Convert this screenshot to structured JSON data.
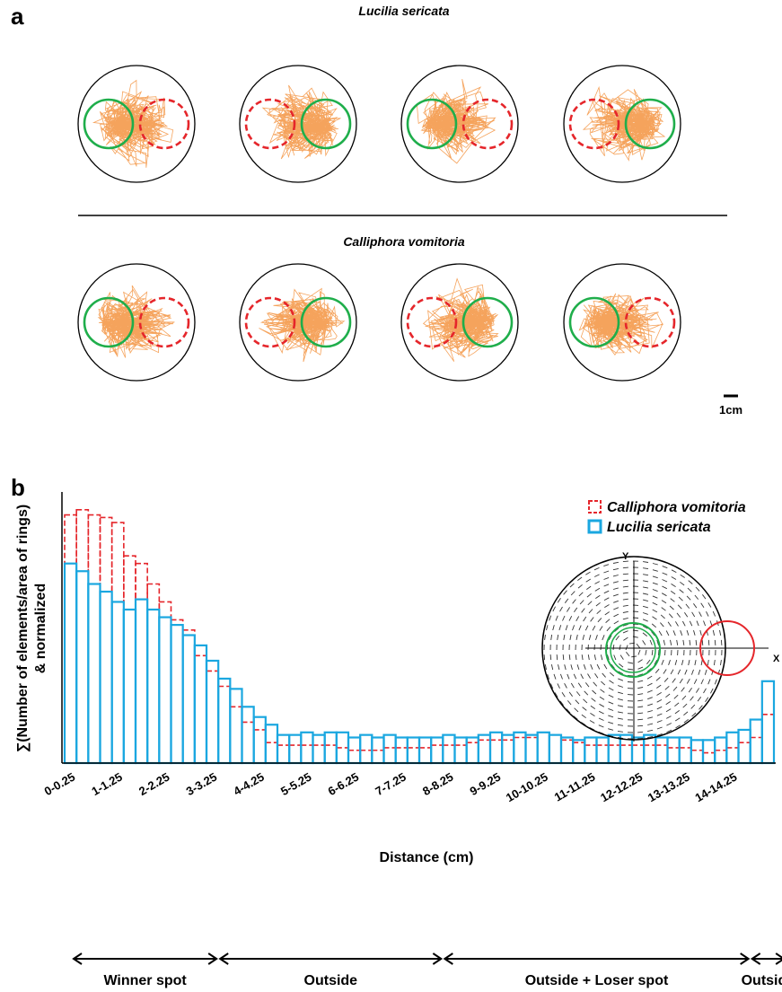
{
  "panel_a": {
    "letter": "a",
    "species": [
      {
        "title": "Lucilia sericata",
        "arenas": [
          {
            "winner_side": "left"
          },
          {
            "winner_side": "right"
          },
          {
            "winner_side": "left"
          },
          {
            "winner_side": "right"
          }
        ]
      },
      {
        "title": "Calliphora vomitoria",
        "arenas": [
          {
            "winner_side": "left"
          },
          {
            "winner_side": "right"
          },
          {
            "winner_side": "right"
          },
          {
            "winner_side": "left"
          }
        ]
      }
    ],
    "scale_bar_label": "1cm",
    "colors": {
      "trajectory": "#f5a35c",
      "winner_circle": "#1fae4b",
      "loser_circle": "#e5262b",
      "arena": "#000000"
    }
  },
  "panel_b": {
    "letter": "b",
    "inset": {
      "x_label": "X",
      "y_label": "Y"
    },
    "regions": [
      "Winner spot",
      "Outside",
      "Outside + Loser spot",
      "Outside"
    ],
    "region_bins": [
      [
        0,
        13
      ],
      [
        13,
        32
      ],
      [
        32,
        58
      ],
      [
        58,
        61
      ]
    ]
  },
  "chart_data": {
    "type": "bar",
    "xlabel": "Distance (cm)",
    "ylabel_lines": [
      "∑(Number of elements/area of rings)",
      "& normalized"
    ],
    "tick_labels": [
      "0-0.25",
      "1-1.25",
      "2-2.25",
      "3-3.25",
      "4-4.25",
      "5-5.25",
      "6-6.25",
      "7-7.25",
      "8-8.25",
      "9-9.25",
      "10-10.25",
      "11-11.25",
      "12-12.25",
      "13-13.25",
      "14-14.25"
    ],
    "bin_width": 0.25,
    "x_start": 0,
    "ylim": [
      0,
      1
    ],
    "series": [
      {
        "name": "Lucilia sericata",
        "color": "#1aa7e0",
        "style": "solid",
        "values": [
          0.78,
          0.75,
          0.7,
          0.67,
          0.63,
          0.6,
          0.64,
          0.6,
          0.57,
          0.54,
          0.5,
          0.46,
          0.4,
          0.33,
          0.29,
          0.22,
          0.18,
          0.15,
          0.11,
          0.11,
          0.12,
          0.11,
          0.12,
          0.12,
          0.1,
          0.11,
          0.1,
          0.11,
          0.1,
          0.1,
          0.1,
          0.1,
          0.11,
          0.1,
          0.1,
          0.11,
          0.12,
          0.11,
          0.12,
          0.11,
          0.12,
          0.11,
          0.1,
          0.09,
          0.1,
          0.1,
          0.11,
          0.11,
          0.1,
          0.11,
          0.1,
          0.1,
          0.1,
          0.09,
          0.09,
          0.1,
          0.12,
          0.13,
          0.17,
          0.32
        ]
      },
      {
        "name": "Calliphora vomitoria",
        "color": "#e5262b",
        "style": "dashed",
        "values": [
          0.97,
          0.99,
          0.97,
          0.96,
          0.94,
          0.81,
          0.78,
          0.7,
          0.63,
          0.56,
          0.52,
          0.42,
          0.36,
          0.3,
          0.22,
          0.16,
          0.13,
          0.08,
          0.07,
          0.07,
          0.07,
          0.07,
          0.07,
          0.06,
          0.05,
          0.05,
          0.05,
          0.06,
          0.06,
          0.06,
          0.06,
          0.07,
          0.07,
          0.07,
          0.08,
          0.09,
          0.09,
          0.09,
          0.1,
          0.1,
          0.12,
          0.11,
          0.09,
          0.08,
          0.07,
          0.07,
          0.07,
          0.07,
          0.07,
          0.07,
          0.07,
          0.06,
          0.06,
          0.05,
          0.04,
          0.05,
          0.06,
          0.08,
          0.1,
          0.19
        ]
      }
    ]
  }
}
